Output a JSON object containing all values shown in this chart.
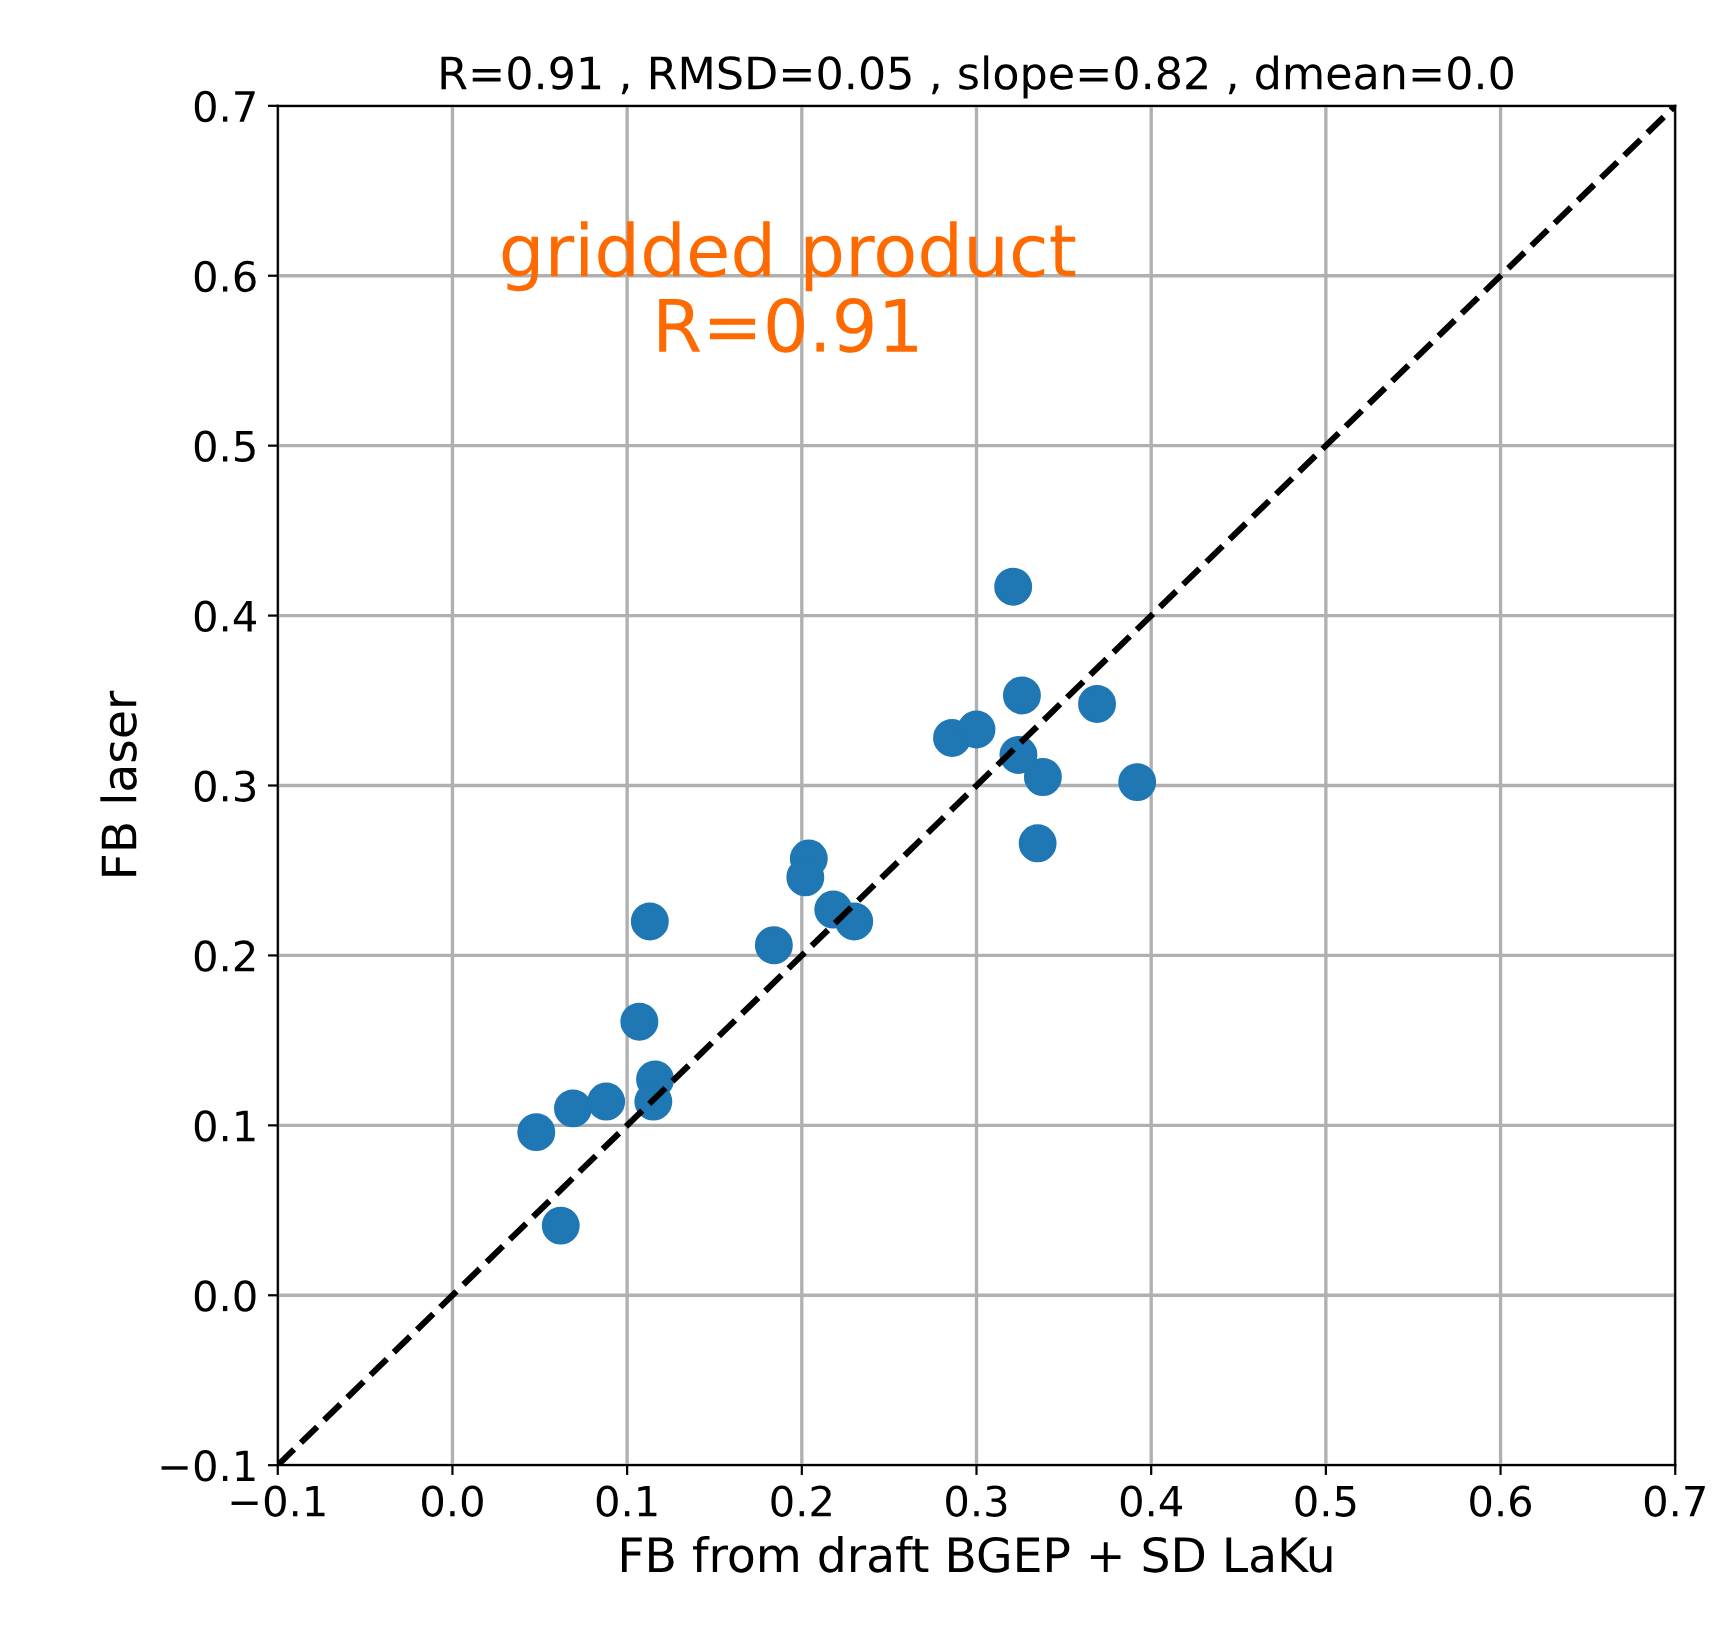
{
  "chart_data": {
    "type": "scatter",
    "title": "R=0.91 , RMSD=0.05 , slope=0.82 , dmean=0.0",
    "xlabel": "FB from draft BGEP + SD LaKu",
    "ylabel": "FB laser",
    "annotations": [
      "gridded product\nR=0.91"
    ],
    "series": [
      {
        "color": "#1f77b4",
        "marker": "circle",
        "x": [
          0.048,
          0.062,
          0.069,
          0.088,
          0.107,
          0.113,
          0.116,
          0.115,
          0.184,
          0.204,
          0.202,
          0.218,
          0.23,
          0.286,
          0.3,
          0.321,
          0.326,
          0.324,
          0.338,
          0.335,
          0.369,
          0.392
        ],
        "values": [
          0.096,
          0.041,
          0.11,
          0.114,
          0.161,
          0.22,
          0.127,
          0.114,
          0.206,
          0.257,
          0.246,
          0.227,
          0.22,
          0.328,
          0.333,
          0.417,
          0.353,
          0.318,
          0.305,
          0.266,
          0.348,
          0.302
        ]
      },
      {
        "type": "line",
        "color": "#000000",
        "line_style": "dashed",
        "marker": "none",
        "x": [
          -0.1,
          0.7
        ],
        "values": [
          -0.1,
          0.7
        ]
      }
    ],
    "xlim": [
      -0.1,
      0.7
    ],
    "ylim": [
      -0.1,
      0.7
    ],
    "xticks": [
      {
        "value": -0.1,
        "label": "−0.1"
      },
      {
        "value": 0,
        "label": "0.0"
      },
      0.1,
      0.2,
      0.3,
      0.4,
      0.5,
      0.6,
      0.7
    ],
    "yticks": [
      {
        "value": -0.1,
        "label": "−0.1"
      },
      {
        "value": 0,
        "label": "0.0"
      },
      0.1,
      0.2,
      0.3,
      0.4,
      0.5,
      0.6,
      0.7
    ],
    "grid": true,
    "legend": false
  }
}
